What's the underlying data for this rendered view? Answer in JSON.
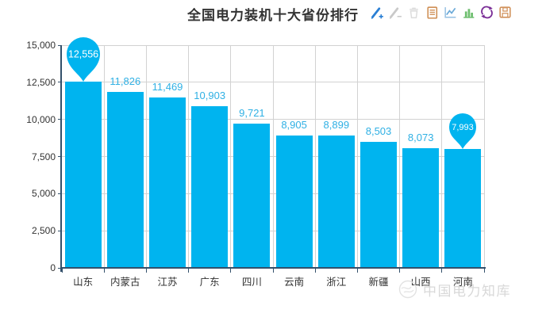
{
  "title": "全国电力装机十大省份排行",
  "toolbar": {
    "icons": [
      {
        "name": "mark-icon",
        "color": "#2a7fd4"
      },
      {
        "name": "mark-undo-icon",
        "color": "#c9c9c9"
      },
      {
        "name": "mark-clear-icon",
        "color": "#dcdcdc"
      },
      {
        "name": "data-view-icon",
        "color": "#cf8f55"
      },
      {
        "name": "line-chart-icon",
        "color": "#6aa9d8"
      },
      {
        "name": "bar-chart-icon",
        "color": "#6fbf70"
      },
      {
        "name": "restore-icon",
        "color": "#7a2d96"
      },
      {
        "name": "save-image-icon",
        "color": "#d1925c"
      }
    ]
  },
  "chart_data": {
    "type": "bar",
    "title": "全国电力装机十大省份排行",
    "categories": [
      "山东",
      "内蒙古",
      "江苏",
      "广东",
      "四川",
      "云南",
      "浙江",
      "新疆",
      "山西",
      "河南"
    ],
    "values": [
      12556,
      11826,
      11469,
      10903,
      9721,
      8905,
      8899,
      8503,
      8073,
      7993
    ],
    "value_labels": [
      "12,556",
      "11,826",
      "11,469",
      "10,903",
      "9,721",
      "8,905",
      "8,899",
      "8,503",
      "8,073",
      "7,993"
    ],
    "xlabel": "",
    "ylabel": "",
    "ylim": [
      0,
      15000
    ],
    "ytick_interval": 2500,
    "ytick_labels": [
      "0",
      "2,500",
      "5,000",
      "7,500",
      "10,000",
      "12,500",
      "15,000"
    ],
    "grid": true,
    "legend": false,
    "max_marker": {
      "category": "山东",
      "index": 0,
      "label": "12,556"
    },
    "min_marker": {
      "category": "河南",
      "index": 9,
      "label": "7,993"
    }
  },
  "colors": {
    "bar": "#00b4ef",
    "bar_label": "#2fb0e4",
    "axis_line": "#33506b",
    "grid_line": "#d2d2d2",
    "tick_label": "#333333",
    "title": "#333333",
    "pin_text": "#ffffff",
    "background": "#ffffff",
    "watermark": "#d8d8d8"
  },
  "watermark": {
    "text": "中国电力知库"
  }
}
